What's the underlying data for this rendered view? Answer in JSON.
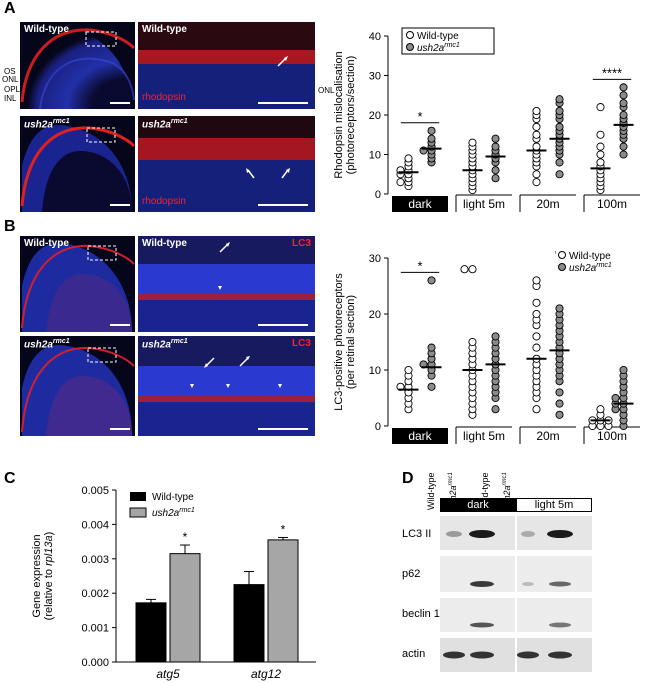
{
  "panels": {
    "A": {
      "letter": "A",
      "images": {
        "wt_overview_label": "Wild-type",
        "wt_zoom_label": "Wild-type",
        "mut_overview_label_main": "ush2a",
        "mut_overview_label_sup": "rmc1",
        "mut_zoom_label_main": "ush2a",
        "mut_zoom_label_sup": "rmc1",
        "stain_label": "rhodopsin",
        "layers": [
          "OS",
          "ONL",
          "OPL",
          "INL"
        ],
        "onl_label": "ONL"
      }
    },
    "B": {
      "letter": "B",
      "images": {
        "wt_overview_label": "Wild-type",
        "wt_zoom_label": "Wild-type",
        "mut_overview_label_main": "ush2a",
        "mut_overview_label_sup": "rmc1",
        "mut_zoom_label_main": "ush2a",
        "mut_zoom_label_sup": "rmc1",
        "stain_label": "LC3"
      }
    },
    "C": {
      "letter": "C"
    },
    "D": {
      "letter": "D",
      "lanes": [
        "Wild-type",
        "ush2a rmc1",
        "Wild-type",
        "ush2a rmc1"
      ],
      "lane_main": [
        "Wild-type",
        "ush2a",
        "Wild-type",
        "ush2a"
      ],
      "lane_sup": [
        "",
        "rmc1",
        "",
        "rmc1"
      ],
      "conditions": [
        "dark",
        "light 5m"
      ],
      "rows": [
        "LC3 II",
        "p62",
        "beclin 1",
        "actin"
      ]
    }
  },
  "chart_data": [
    {
      "id": "A",
      "type": "scatter",
      "ylabel": "Rhodopsin mislocalisation (photoreceptors/section)",
      "ylim": [
        0,
        40
      ],
      "yticks": [
        0,
        10,
        20,
        30,
        40
      ],
      "categories": [
        "dark",
        "light 5m",
        "20m",
        "100m"
      ],
      "legend": [
        {
          "name": "Wild-type",
          "marker": "open"
        },
        {
          "name": "ush2a rmc1",
          "marker": "filled"
        }
      ],
      "legend_position": "top",
      "series": [
        {
          "name": "Wild-type",
          "means": [
            5.5,
            6.0,
            11.0,
            6.5
          ],
          "values": [
            [
              2,
              3,
              3,
              4,
              5,
              5,
              6,
              6,
              7,
              8,
              9
            ],
            [
              1,
              2,
              3,
              4,
              5,
              6,
              7,
              8,
              9,
              10,
              11,
              12,
              13
            ],
            [
              3,
              5,
              7,
              8,
              9,
              10,
              11,
              12,
              14,
              15,
              17,
              19,
              20,
              21
            ],
            [
              1,
              2,
              3,
              4,
              5,
              6,
              7,
              8,
              10,
              12,
              15,
              22
            ]
          ]
        },
        {
          "name": "ush2a rmc1",
          "means": [
            11.5,
            9.5,
            14.0,
            17.5
          ],
          "values": [
            [
              8,
              9,
              10,
              11,
              11,
              12,
              13,
              14,
              16
            ],
            [
              4,
              6,
              8,
              9,
              10,
              11,
              12,
              14
            ],
            [
              5,
              8,
              10,
              11,
              12,
              13,
              14,
              15,
              16,
              17,
              19,
              20,
              21,
              23,
              24
            ],
            [
              10,
              12,
              14,
              15,
              16,
              17,
              18,
              19,
              20,
              22,
              23,
              25,
              27
            ]
          ]
        }
      ],
      "significance": [
        {
          "category": "dark",
          "label": "*"
        },
        {
          "category": "100m",
          "label": "****"
        }
      ]
    },
    {
      "id": "B",
      "type": "scatter",
      "ylabel": "LC3-positive photoreceptors (per retinal section)",
      "ylim": [
        0,
        30
      ],
      "yticks": [
        0,
        10,
        20,
        30
      ],
      "categories": [
        "dark",
        "light 5m",
        "20m",
        "100m"
      ],
      "legend": [
        {
          "name": "Wild-type",
          "marker": "open"
        },
        {
          "name": "ush2a rmc1",
          "marker": "filled"
        }
      ],
      "legend_position": "top-right",
      "series": [
        {
          "name": "Wild-type",
          "means": [
            6.5,
            10.0,
            12.0,
            1.0
          ],
          "values": [
            [
              3,
              4,
              5,
              6,
              7,
              7,
              8,
              9,
              10
            ],
            [
              2,
              3,
              4,
              5,
              6,
              7,
              8,
              9,
              10,
              11,
              12,
              13,
              14,
              15,
              28,
              28
            ],
            [
              3,
              5,
              6,
              7,
              8,
              9,
              10,
              11,
              12,
              14,
              16,
              18,
              19,
              20,
              22,
              25,
              26
            ],
            [
              0,
              0,
              0,
              1,
              1,
              1,
              2,
              3
            ]
          ]
        },
        {
          "name": "ush2a rmc1",
          "means": [
            10.5,
            11.0,
            13.5,
            4.0
          ],
          "values": [
            [
              7,
              9,
              10,
              11,
              11,
              12,
              13,
              14,
              26
            ],
            [
              3,
              5,
              6,
              7,
              8,
              9,
              10,
              11,
              12,
              13,
              14,
              15,
              16
            ],
            [
              2,
              4,
              6,
              8,
              9,
              10,
              11,
              12,
              13,
              14,
              15,
              16,
              17,
              18,
              19,
              20,
              21,
              31
            ],
            [
              0,
              1,
              2,
              3,
              3,
              4,
              4,
              5,
              5,
              6,
              7,
              8,
              9,
              10
            ]
          ]
        }
      ],
      "significance": [
        {
          "category": "dark",
          "label": "*"
        }
      ]
    },
    {
      "id": "C",
      "type": "bar",
      "ylabel": "Gene expression (relative to rpl13a)",
      "ylim": [
        0,
        0.005
      ],
      "yticks": [
        "0.000",
        "0.001",
        "0.002",
        "0.003",
        "0.004",
        "0.005"
      ],
      "categories": [
        "atg5",
        "atg12"
      ],
      "series": [
        {
          "name": "Wild-type",
          "color": "#000000",
          "values": [
            0.00172,
            0.00225
          ],
          "errors": [
            0.0001,
            0.00038
          ]
        },
        {
          "name": "ush2a rmc1",
          "color": "#a6a6a6",
          "values": [
            0.00315,
            0.00355
          ],
          "errors": [
            0.00025,
            7e-05
          ]
        }
      ],
      "significance": [
        {
          "category": "atg5",
          "label": "*"
        },
        {
          "category": "atg12",
          "label": "*"
        }
      ]
    }
  ]
}
